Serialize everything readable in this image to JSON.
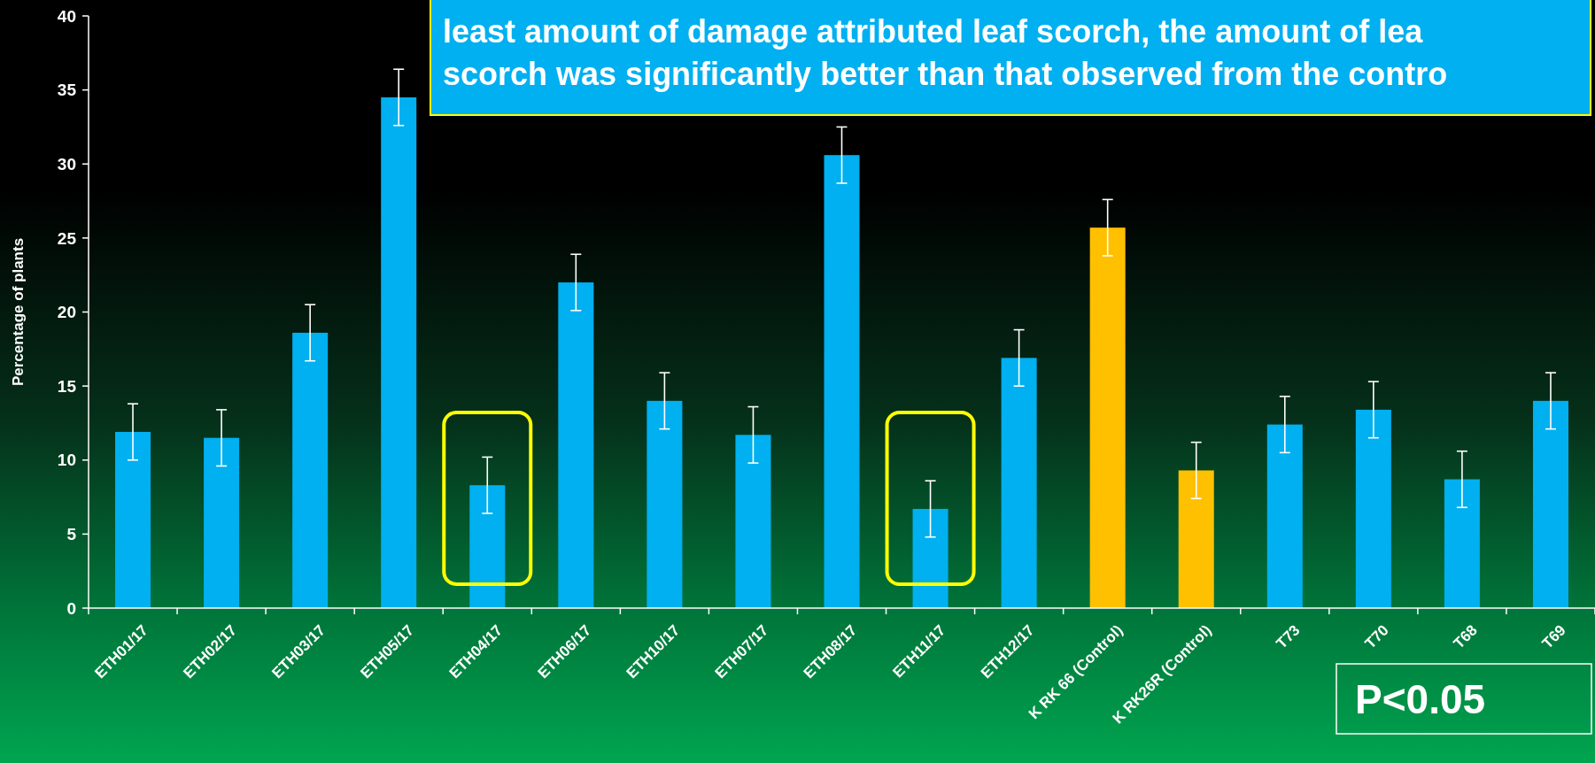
{
  "chart_data": {
    "type": "bar",
    "ylabel": "Percentage of plants",
    "categories": [
      "ETH01/17",
      "ETH02/17",
      "ETH03/17",
      "ETH05/17",
      "ETH04/17",
      "ETH06/17",
      "ETH10/17",
      "ETH07/17",
      "ETH08/17",
      "ETH11/17",
      "ETH12/17",
      "K RK 66 (Control)",
      "K RK26R (Control)",
      "T73",
      "T70",
      "T68",
      "T69"
    ],
    "values": [
      11.9,
      11.5,
      18.6,
      34.5,
      8.3,
      22.0,
      14.0,
      11.7,
      30.6,
      6.7,
      16.9,
      25.7,
      9.3,
      12.4,
      13.4,
      8.7,
      14.0
    ],
    "errors": [
      1.9,
      1.9,
      1.9,
      1.9,
      1.9,
      1.9,
      1.9,
      1.9,
      1.9,
      1.9,
      1.9,
      1.9,
      1.9,
      1.9,
      1.9,
      1.9,
      1.9
    ],
    "colors": [
      "#00b0f0",
      "#00b0f0",
      "#00b0f0",
      "#00b0f0",
      "#00b0f0",
      "#00b0f0",
      "#00b0f0",
      "#00b0f0",
      "#00b0f0",
      "#00b0f0",
      "#00b0f0",
      "#ffc000",
      "#ffc000",
      "#00b0f0",
      "#00b0f0",
      "#00b0f0",
      "#00b0f0"
    ],
    "ylim": [
      0,
      40
    ],
    "yticks": [
      0,
      5,
      10,
      15,
      20,
      25,
      30,
      35,
      40
    ],
    "grid": false,
    "annotations": [
      "least amount of damage attributed leaf scorch, the amount of lea",
      "scorch was significantly better than that observed from the contro",
      "P<0.05"
    ]
  }
}
